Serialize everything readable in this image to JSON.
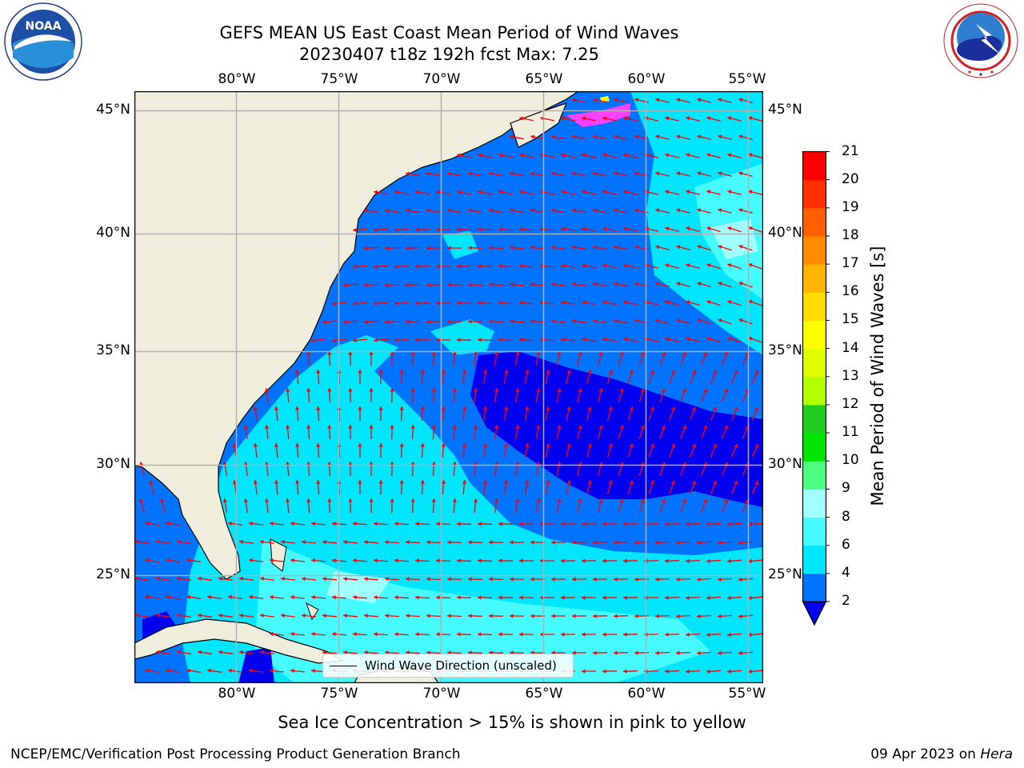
{
  "header": {
    "title_line1": "GEFS MEAN US East Coast Mean Period of Wind Waves",
    "title_line2": "20230407 t18z 192h fcst   Max: 7.25"
  },
  "logos": {
    "left": {
      "name": "noaa-logo",
      "text": "NOAA",
      "ring_text": "NATIONAL OCEANIC AND ATMOSPHERIC ADMINISTRATION · U.S. DEPARTMENT OF COMMERCE"
    },
    "right": {
      "name": "national-weather-service-logo",
      "ring_text": "NATIONAL WEATHER SERVICE"
    }
  },
  "axes": {
    "lon_ticks": [
      "80°W",
      "75°W",
      "70°W",
      "65°W",
      "60°W",
      "55°W"
    ],
    "lat_ticks": [
      "45°N",
      "40°N",
      "35°N",
      "30°N",
      "25°N"
    ]
  },
  "legend": {
    "label": "Wind Wave Direction (unscaled)"
  },
  "colorbar": {
    "title": "Mean Period of Wind Waves [s]",
    "levels": [
      "2",
      "4",
      "6",
      "8",
      "9",
      "10",
      "11",
      "12",
      "13",
      "14",
      "15",
      "16",
      "17",
      "18",
      "19",
      "20",
      "21"
    ],
    "colors": [
      "#0073ff",
      "#00e6ff",
      "#45fbff",
      "#a0ffff",
      "#4dff7e",
      "#00e600",
      "#1fcc1f",
      "#b3ff00",
      "#dfff00",
      "#ffff00",
      "#ffdd00",
      "#ffb400",
      "#ff8c00",
      "#ff5f00",
      "#ff3000",
      "#ff0000"
    ],
    "under_color": "#0000ee"
  },
  "map": {
    "land_color": "#efeedc",
    "arrow_color": "#ff0000",
    "grid_color": "#b0b0b0"
  },
  "footer": {
    "sea_ice_note": "Sea Ice Concentration > 15% is shown in pink to yellow",
    "credit": "NCEP/EMC/Verification Post Processing Product Generation Branch",
    "date": "09 Apr 2023 on ",
    "machine": "Hera"
  }
}
